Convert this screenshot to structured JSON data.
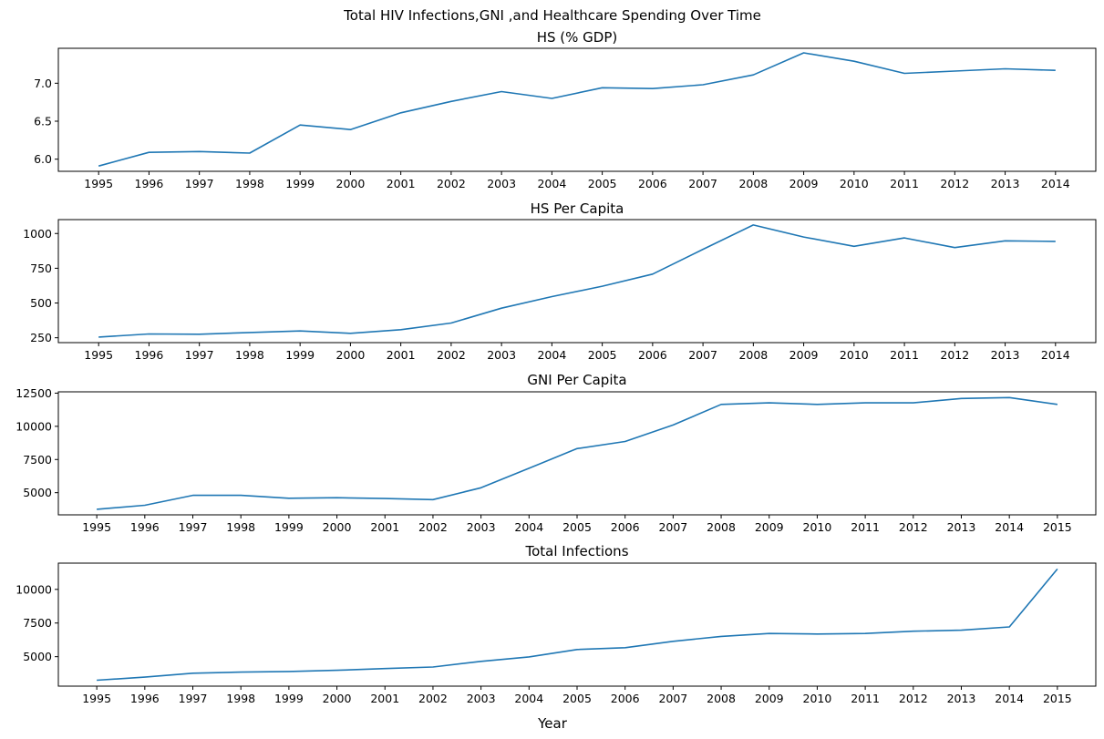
{
  "figure": {
    "suptitle": "Total HIV Infections,GNI ,and Healthcare Spending Over Time",
    "xlabel": "Year"
  },
  "chart_data": [
    {
      "type": "line",
      "title": "HS (% GDP)",
      "x": [
        1995,
        1996,
        1997,
        1998,
        1999,
        2000,
        2001,
        2002,
        2003,
        2004,
        2005,
        2006,
        2007,
        2008,
        2009,
        2010,
        2011,
        2012,
        2013,
        2014
      ],
      "xticks": [
        1995,
        1996,
        1997,
        1998,
        1999,
        2000,
        2001,
        2002,
        2003,
        2004,
        2005,
        2006,
        2007,
        2008,
        2009,
        2010,
        2011,
        2012,
        2013,
        2014
      ],
      "series": [
        {
          "values": [
            5.91,
            6.09,
            6.1,
            6.08,
            6.45,
            6.39,
            6.61,
            6.76,
            6.89,
            6.8,
            6.94,
            6.93,
            6.98,
            7.11,
            7.4,
            7.29,
            7.13,
            7.16,
            7.19,
            7.17
          ]
        }
      ],
      "yticks": [
        6.0,
        6.5,
        7.0
      ],
      "ytick_labels": [
        "6.0",
        "6.5",
        "7.0"
      ],
      "xlim": [
        1994.2,
        2014.8
      ],
      "ylim": [
        5.84,
        7.46
      ],
      "grid": false,
      "color": "#1f77b4"
    },
    {
      "type": "line",
      "title": "HS Per Capita",
      "x": [
        1995,
        1996,
        1997,
        1998,
        1999,
        2000,
        2001,
        2002,
        2003,
        2004,
        2005,
        2006,
        2007,
        2008,
        2009,
        2010,
        2011,
        2012,
        2013,
        2014
      ],
      "xticks": [
        1995,
        1996,
        1997,
        1998,
        1999,
        2000,
        2001,
        2002,
        2003,
        2004,
        2005,
        2006,
        2007,
        2008,
        2009,
        2010,
        2011,
        2012,
        2013,
        2014
      ],
      "series": [
        {
          "values": [
            255,
            277,
            275,
            288,
            299,
            282,
            308,
            356,
            463,
            546,
            621,
            708,
            886,
            1061,
            975,
            908,
            968,
            899,
            947,
            943
          ]
        }
      ],
      "yticks": [
        250,
        500,
        750,
        1000
      ],
      "ytick_labels": [
        "250",
        "500",
        "750",
        "1000"
      ],
      "xlim": [
        1994.2,
        2014.8
      ],
      "ylim": [
        215,
        1100
      ],
      "grid": false,
      "color": "#1f77b4"
    },
    {
      "type": "line",
      "title": "GNI Per Capita",
      "x": [
        1995,
        1996,
        1997,
        1998,
        1999,
        2000,
        2001,
        2002,
        2003,
        2004,
        2005,
        2006,
        2007,
        2008,
        2009,
        2010,
        2011,
        2012,
        2013,
        2014,
        2015
      ],
      "xticks": [
        1995,
        1996,
        1997,
        1998,
        1999,
        2000,
        2001,
        2002,
        2003,
        2004,
        2005,
        2006,
        2007,
        2008,
        2009,
        2010,
        2011,
        2012,
        2013,
        2014,
        2015
      ],
      "series": [
        {
          "values": [
            3750,
            4050,
            4800,
            4800,
            4580,
            4620,
            4560,
            4480,
            5370,
            6840,
            8320,
            8860,
            10100,
            11650,
            11770,
            11650,
            11770,
            11770,
            12100,
            12170,
            11650
          ]
        }
      ],
      "yticks": [
        5000,
        7500,
        10000,
        12500
      ],
      "ytick_labels": [
        "5000",
        "7500",
        "10000",
        "12500"
      ],
      "xlim": [
        1994.2,
        2015.8
      ],
      "ylim": [
        3330,
        12600
      ],
      "grid": false,
      "color": "#1f77b4"
    },
    {
      "type": "line",
      "title": "Total Infections",
      "x": [
        1995,
        1996,
        1997,
        1998,
        1999,
        2000,
        2001,
        2002,
        2003,
        2004,
        2005,
        2006,
        2007,
        2008,
        2009,
        2010,
        2011,
        2012,
        2013,
        2014,
        2015
      ],
      "xticks": [
        1995,
        1996,
        1997,
        1998,
        1999,
        2000,
        2001,
        2002,
        2003,
        2004,
        2005,
        2006,
        2007,
        2008,
        2009,
        2010,
        2011,
        2012,
        2013,
        2014,
        2015
      ],
      "series": [
        {
          "values": [
            3250,
            3480,
            3770,
            3850,
            3900,
            3990,
            4120,
            4230,
            4650,
            4980,
            5530,
            5670,
            6140,
            6510,
            6720,
            6680,
            6720,
            6890,
            6970,
            7210,
            11520
          ]
        }
      ],
      "yticks": [
        5000,
        7500,
        10000
      ],
      "ytick_labels": [
        "5000",
        "7500",
        "10000"
      ],
      "xlim": [
        1994.2,
        2015.8
      ],
      "ylim": [
        2810,
        11950
      ],
      "grid": false,
      "color": "#1f77b4"
    }
  ]
}
